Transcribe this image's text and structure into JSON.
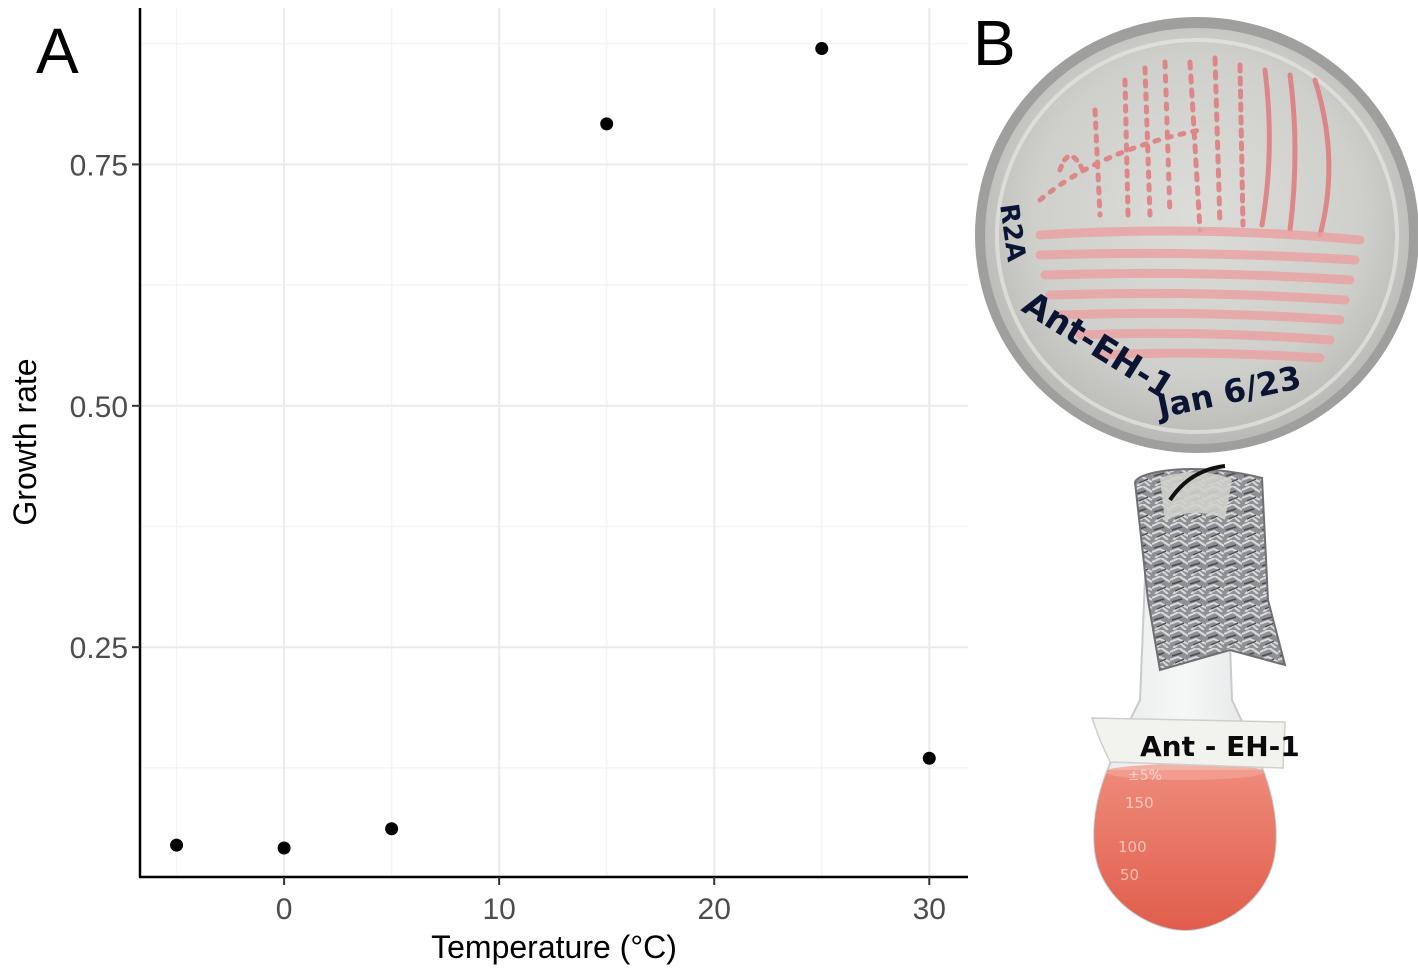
{
  "panel_a_label": "A",
  "panel_b_label": "B",
  "chart_data": {
    "type": "scatter",
    "title": "",
    "xlabel": "Temperature (°C)",
    "ylabel": "Growth rate",
    "x": [
      -5,
      0,
      5,
      15,
      25,
      30
    ],
    "y": [
      0.045,
      0.042,
      0.062,
      0.792,
      0.87,
      0.135
    ],
    "xlim": [
      -6.7,
      31.8
    ],
    "ylim": [
      0.012,
      0.912
    ],
    "x_ticks": [
      0,
      10,
      20,
      30
    ],
    "x_tick_labels": [
      "0",
      "10",
      "20",
      "30"
    ],
    "y_ticks": [
      0.25,
      0.5,
      0.75
    ],
    "y_tick_labels": [
      "0.25",
      "0.50",
      "0.75"
    ],
    "grid": true,
    "point_color": "#000000"
  },
  "photo": {
    "plate_text_medium": "R2A",
    "plate_text_strain": "Ant-EH-1",
    "plate_text_date": "Jan 6/23",
    "flask_label": "Ant - EH-1",
    "flask_graduations": [
      "150",
      "100",
      "50"
    ],
    "flask_percent_mark": "±5%"
  },
  "colors": {
    "major_grid": "#ebebeb",
    "minor_grid": "#f4f4f4",
    "axis": "#000000",
    "tick_text": "#4d4d4d",
    "culture_red": "#e46a5c"
  }
}
